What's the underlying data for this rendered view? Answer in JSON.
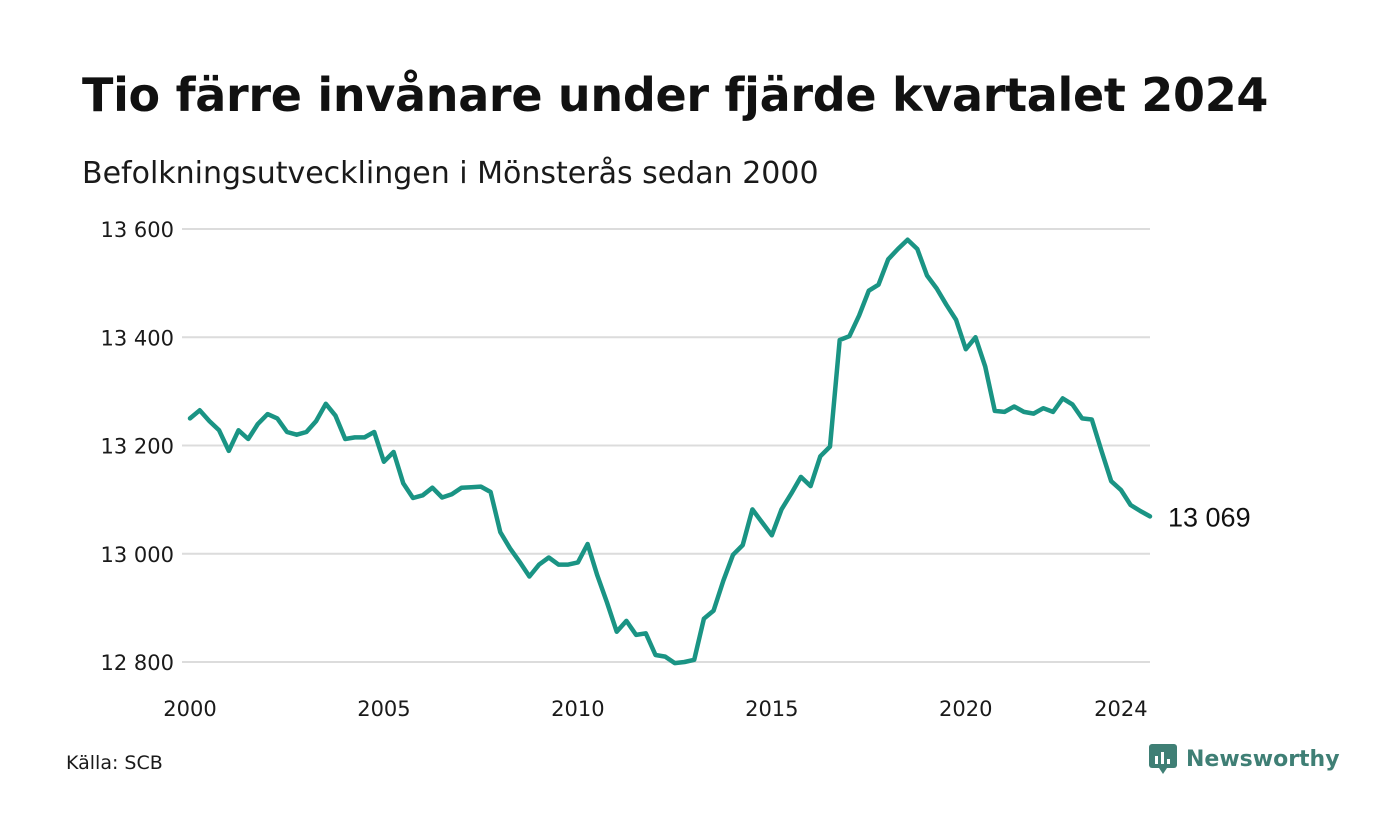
{
  "header": {
    "title": "Tio färre invånare under fjärde kvartalet 2024",
    "subtitle": "Befolkningsutvecklingen i Mönsterås sedan 2000"
  },
  "footer": {
    "source": "Källa: SCB",
    "brand": "Newsworthy",
    "brand_icon": "newsworthy-logo-icon"
  },
  "colors": {
    "line": "#1a9484",
    "grid": "#dcdcdc",
    "brand": "#3f7f75"
  },
  "chart_data": {
    "type": "line",
    "title": "Tio färre invånare under fjärde kvartalet 2024",
    "subtitle": "Befolkningsutvecklingen i Mönsterås sedan 2000",
    "xlabel": "",
    "ylabel": "",
    "x_ticks": [
      2000,
      2005,
      2010,
      2015,
      2020,
      2024
    ],
    "y_ticks": [
      12800,
      13000,
      13200,
      13400,
      13600
    ],
    "y_tick_labels": [
      "12 800",
      "13 000",
      "13 200",
      "13 400",
      "13 600"
    ],
    "x_tick_labels": [
      "2000",
      "2005",
      "2010",
      "2015",
      "2020",
      "2024"
    ],
    "xlim": [
      2000,
      2024.75
    ],
    "ylim": [
      12800,
      13600
    ],
    "grid": "horizontal",
    "end_label": "13 069",
    "series": [
      {
        "name": "",
        "x": [
          2000.0,
          2000.25,
          2000.5,
          2000.75,
          2001.0,
          2001.25,
          2001.5,
          2001.75,
          2002.0,
          2002.25,
          2002.5,
          2002.75,
          2003.0,
          2003.25,
          2003.5,
          2003.75,
          2004.0,
          2004.25,
          2004.5,
          2004.75,
          2005.0,
          2005.25,
          2005.5,
          2005.75,
          2006.0,
          2006.25,
          2006.5,
          2006.75,
          2007.0,
          2007.25,
          2007.5,
          2007.75,
          2008.0,
          2008.25,
          2008.5,
          2008.75,
          2009.0,
          2009.25,
          2009.5,
          2009.75,
          2010.0,
          2010.25,
          2010.5,
          2010.75,
          2011.0,
          2011.25,
          2011.5,
          2011.75,
          2012.0,
          2012.25,
          2012.5,
          2012.75,
          2013.0,
          2013.25,
          2013.5,
          2013.75,
          2014.0,
          2014.25,
          2014.5,
          2014.75,
          2015.0,
          2015.25,
          2015.5,
          2015.75,
          2016.0,
          2016.25,
          2016.5,
          2016.75,
          2017.0,
          2017.25,
          2017.5,
          2017.75,
          2018.0,
          2018.25,
          2018.5,
          2018.75,
          2019.0,
          2019.25,
          2019.5,
          2019.75,
          2020.0,
          2020.25,
          2020.5,
          2020.75,
          2021.0,
          2021.25,
          2021.5,
          2021.75,
          2022.0,
          2022.25,
          2022.5,
          2022.75,
          2023.0,
          2023.25,
          2023.5,
          2023.75,
          2024.0,
          2024.25,
          2024.5,
          2024.75
        ],
        "values": [
          13250,
          13265,
          13245,
          13228,
          13190,
          13228,
          13212,
          13240,
          13258,
          13250,
          13225,
          13220,
          13225,
          13245,
          13277,
          13255,
          13212,
          13215,
          13215,
          13225,
          13170,
          13188,
          13130,
          13103,
          13108,
          13122,
          13104,
          13110,
          13122,
          13123,
          13124,
          13114,
          13040,
          13010,
          12985,
          12958,
          12980,
          12993,
          12980,
          12980,
          12984,
          13018,
          12960,
          12910,
          12856,
          12876,
          12850,
          12853,
          12813,
          12810,
          12798,
          12800,
          12804,
          12880,
          12895,
          12950,
          12998,
          13016,
          13082,
          13058,
          13034,
          13082,
          13111,
          13142,
          13125,
          13180,
          13198,
          13395,
          13402,
          13440,
          13486,
          13497,
          13544,
          13563,
          13580,
          13563,
          13514,
          13490,
          13460,
          13432,
          13378,
          13400,
          13346,
          13264,
          13262,
          13272,
          13262,
          13259,
          13269,
          13262,
          13287,
          13276,
          13250,
          13248,
          13190,
          13134,
          13118,
          13090,
          13079,
          13069
        ]
      }
    ]
  }
}
